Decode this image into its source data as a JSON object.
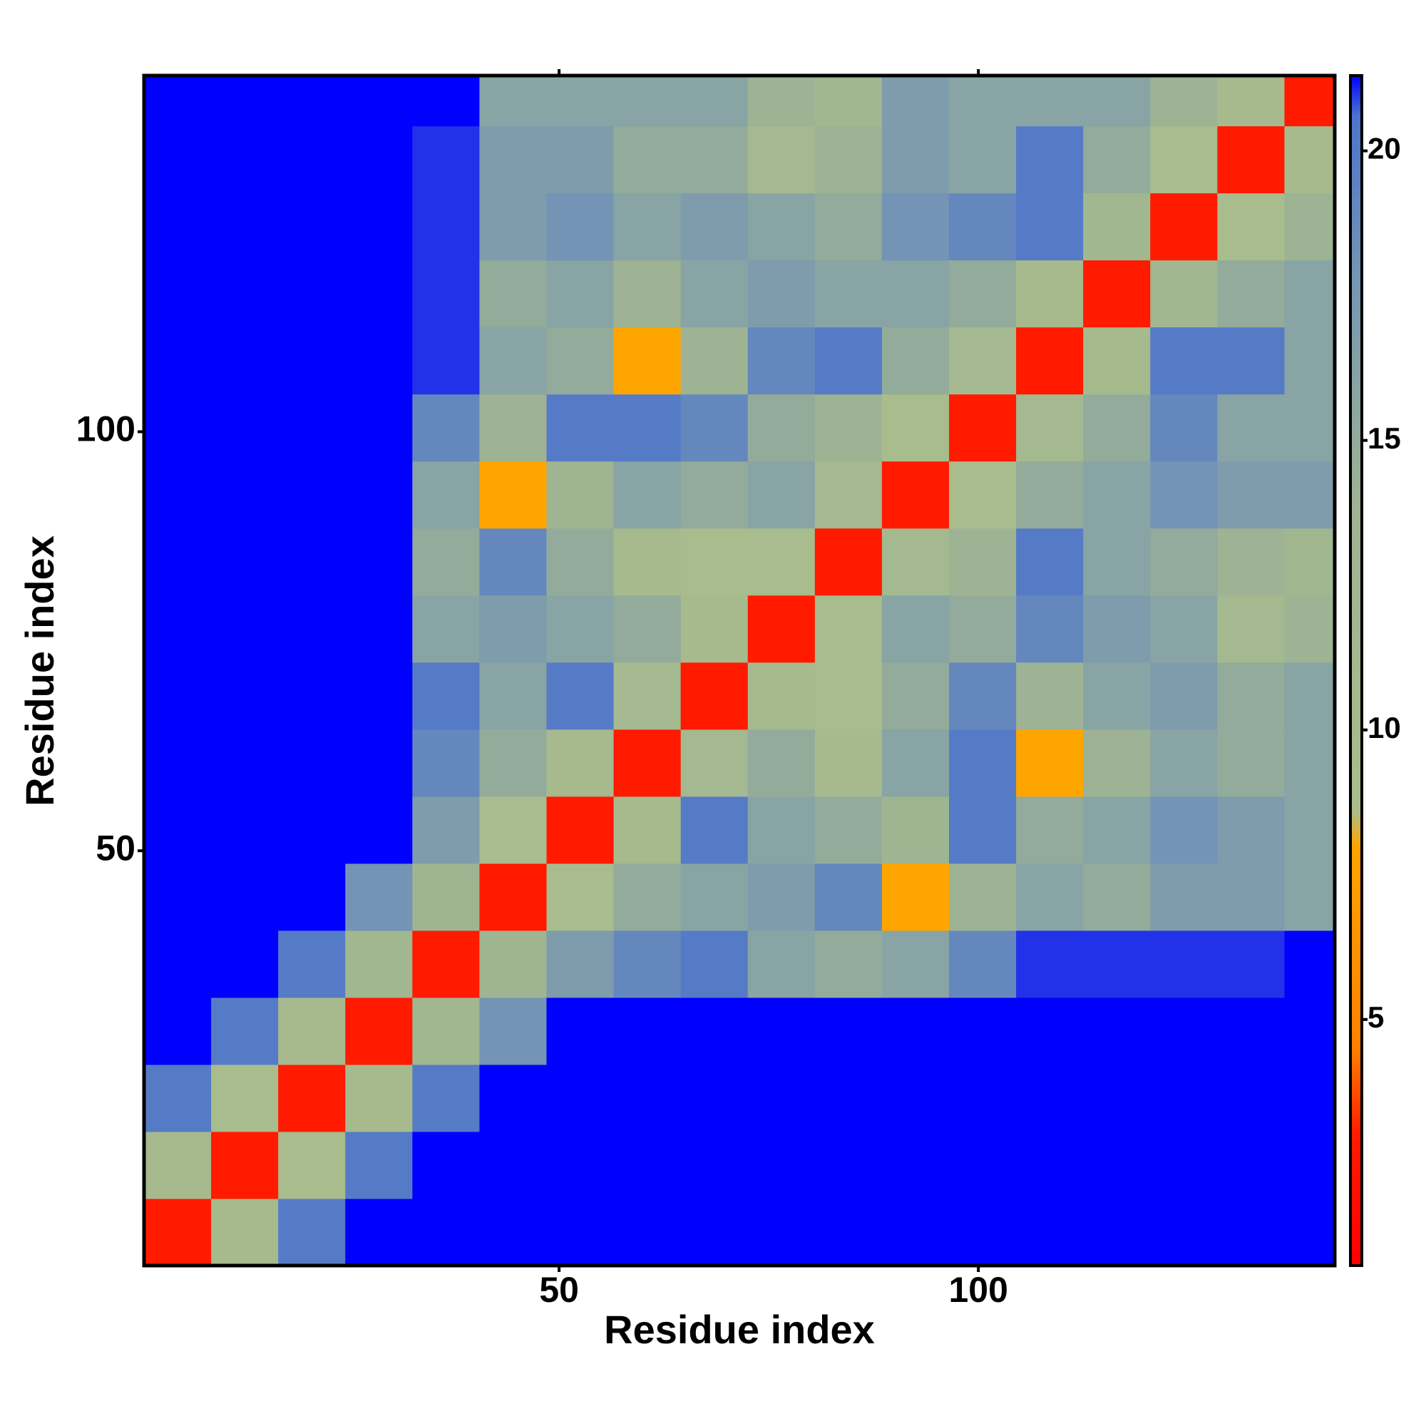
{
  "chart_data": {
    "type": "heatmap",
    "x_label": "Residue index",
    "y_label": "Residue index",
    "x": [
      4.5,
      12.5,
      20.5,
      28.5,
      36.5,
      44.5,
      52.5,
      60.5,
      68.5,
      76.5,
      84.5,
      92.5,
      100.5,
      108.5,
      116.5,
      124.5,
      132.5,
      140.5
    ],
    "y": [
      4.5,
      12.5,
      20.5,
      28.5,
      36.5,
      44.5,
      52.5,
      60.5,
      68.5,
      76.5,
      84.5,
      92.5,
      100.5,
      108.5,
      116.5,
      124.5,
      132.5,
      140.5
    ],
    "values": [
      [
        3,
        10,
        20,
        22,
        22,
        22,
        22,
        22,
        22,
        22,
        22,
        22,
        22,
        22,
        22,
        22,
        22,
        22
      ],
      [
        10,
        3,
        9,
        20,
        22,
        22,
        22,
        22,
        22,
        22,
        22,
        22,
        22,
        22,
        22,
        22,
        22,
        22
      ],
      [
        20,
        9,
        3,
        10,
        20,
        22,
        22,
        22,
        22,
        22,
        22,
        22,
        22,
        22,
        22,
        22,
        22,
        22
      ],
      [
        22,
        20,
        10,
        3,
        12,
        18,
        22,
        22,
        22,
        22,
        22,
        22,
        22,
        22,
        22,
        22,
        22,
        22
      ],
      [
        22,
        22,
        20,
        12,
        3,
        13,
        17,
        19,
        20,
        16,
        15,
        16,
        19,
        21,
        21,
        21,
        21,
        22
      ],
      [
        22,
        22,
        22,
        18,
        13,
        3,
        9,
        15,
        16,
        17,
        19,
        8,
        14,
        16,
        15,
        17,
        17,
        16
      ],
      [
        22,
        22,
        22,
        22,
        17,
        9,
        3,
        10,
        20,
        16,
        15,
        13,
        20,
        15,
        16,
        18,
        17,
        16
      ],
      [
        22,
        22,
        22,
        22,
        19,
        15,
        10,
        3,
        11,
        15,
        10,
        16,
        20,
        8,
        14,
        16,
        15,
        16
      ],
      [
        22,
        22,
        22,
        22,
        20,
        16,
        20,
        11,
        3,
        10,
        9,
        15,
        19,
        14,
        16,
        17,
        15,
        16
      ],
      [
        22,
        22,
        22,
        22,
        16,
        17,
        16,
        15,
        10,
        3,
        9,
        16,
        15,
        19,
        17,
        16,
        11,
        14
      ],
      [
        22,
        22,
        22,
        22,
        15,
        19,
        15,
        10,
        9,
        9,
        3,
        11,
        14,
        20,
        16,
        15,
        14,
        12
      ],
      [
        22,
        22,
        22,
        22,
        16,
        8,
        13,
        16,
        15,
        16,
        11,
        3,
        9,
        15,
        16,
        18,
        17,
        17
      ],
      [
        22,
        22,
        22,
        22,
        19,
        14,
        20,
        20,
        19,
        15,
        14,
        9,
        3,
        11,
        15,
        19,
        16,
        16
      ],
      [
        22,
        22,
        22,
        22,
        21,
        16,
        15,
        8,
        14,
        19,
        20,
        15,
        11,
        3,
        10,
        20,
        20,
        16
      ],
      [
        22,
        22,
        22,
        22,
        21,
        15,
        16,
        14,
        16,
        17,
        16,
        16,
        15,
        10,
        3,
        12,
        15,
        16
      ],
      [
        22,
        22,
        22,
        22,
        21,
        17,
        18,
        16,
        17,
        16,
        15,
        18,
        19,
        20,
        12,
        3,
        9,
        14
      ],
      [
        22,
        22,
        22,
        22,
        21,
        17,
        17,
        15,
        15,
        11,
        14,
        17,
        16,
        20,
        15,
        9,
        3,
        10
      ],
      [
        22,
        22,
        22,
        22,
        22,
        16,
        16,
        16,
        16,
        14,
        12,
        17,
        16,
        16,
        16,
        14,
        10,
        3
      ]
    ],
    "xlim": [
      0.5,
      142.5
    ],
    "ylim": [
      0.5,
      142.5
    ],
    "xticks": [
      50,
      100
    ],
    "yticks": [
      50,
      100
    ],
    "zlim": [
      0.75,
      21.3
    ],
    "zticks": [
      5,
      10,
      15,
      20
    ],
    "colorscale": [
      [
        0.75,
        "#ff0000"
      ],
      [
        3,
        "#ff1a00"
      ],
      [
        4.5,
        "#ff8000"
      ],
      [
        8,
        "#ffa500"
      ],
      [
        8.6,
        "#a9bd8c"
      ],
      [
        14,
        "#9db393"
      ],
      [
        18,
        "#7394b4"
      ],
      [
        20.6,
        "#4d74cc"
      ],
      [
        21.3,
        "#0000ff"
      ]
    ]
  }
}
